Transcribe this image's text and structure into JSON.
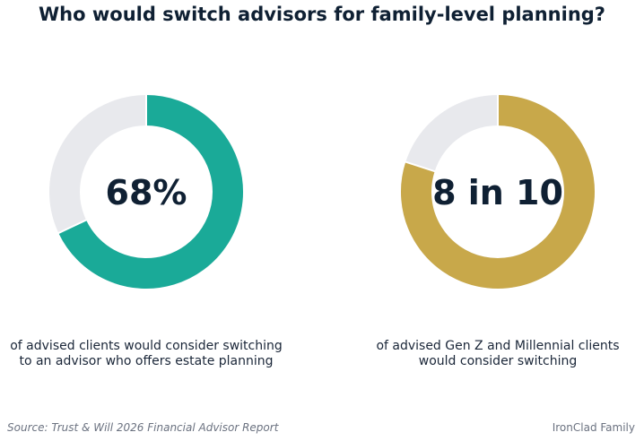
{
  "title": "Who would switch advisors for family-level planning?",
  "chart_data": [
    {
      "type": "pie",
      "style": "donut",
      "value_percent": 68,
      "center_label": "68%",
      "caption_lines": [
        "of advised clients would consider switching",
        "to an advisor who offers estate planning"
      ],
      "colors": {
        "fill": "#1aaa98",
        "track": "#e8e9ed"
      }
    },
    {
      "type": "pie",
      "style": "donut",
      "value_percent": 80,
      "center_label": "8 in 10",
      "caption_lines": [
        "of advised Gen Z and Millennial clients",
        "would consider switching"
      ],
      "colors": {
        "fill": "#c8a84a",
        "track": "#e8e9ed"
      }
    }
  ],
  "source": "Source: Trust & Will 2026 Financial Advisor Report",
  "brand": "IronClad Family"
}
